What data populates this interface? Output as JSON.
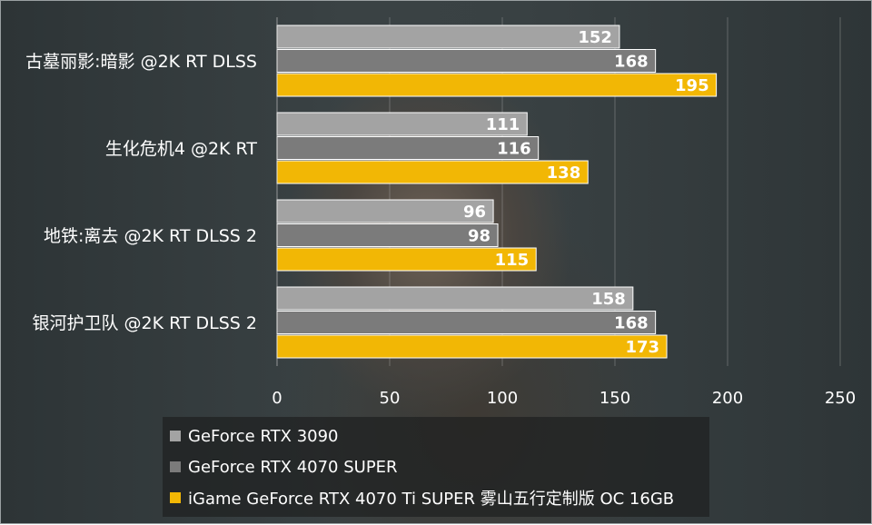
{
  "chart_data": {
    "type": "bar",
    "orientation": "horizontal",
    "title": "",
    "xlabel": "",
    "ylabel": "",
    "categories": [
      "古墓丽影:暗影 @2K RT DLSS",
      "生化危机4 @2K RT",
      "地铁:离去 @2K RT DLSS 2",
      "银河护卫队 @2K RT DLSS 2"
    ],
    "series": [
      {
        "name": "GeForce RTX 3090",
        "color": "#a3a3a3",
        "values": [
          152,
          111,
          96,
          158
        ]
      },
      {
        "name": "GeForce RTX 4070 SUPER",
        "color": "#7b7b7b",
        "values": [
          168,
          116,
          98,
          168
        ]
      },
      {
        "name": "iGame GeForce RTX 4070 Ti SUPER 雾山五行定制版 OC 16GB",
        "color": "#f2b705",
        "values": [
          195,
          138,
          115,
          173
        ]
      }
    ],
    "xlim": [
      0,
      250
    ],
    "xticks": [
      0,
      50,
      100,
      150,
      200,
      250
    ],
    "grid": true,
    "legend_position": "bottom-center"
  }
}
